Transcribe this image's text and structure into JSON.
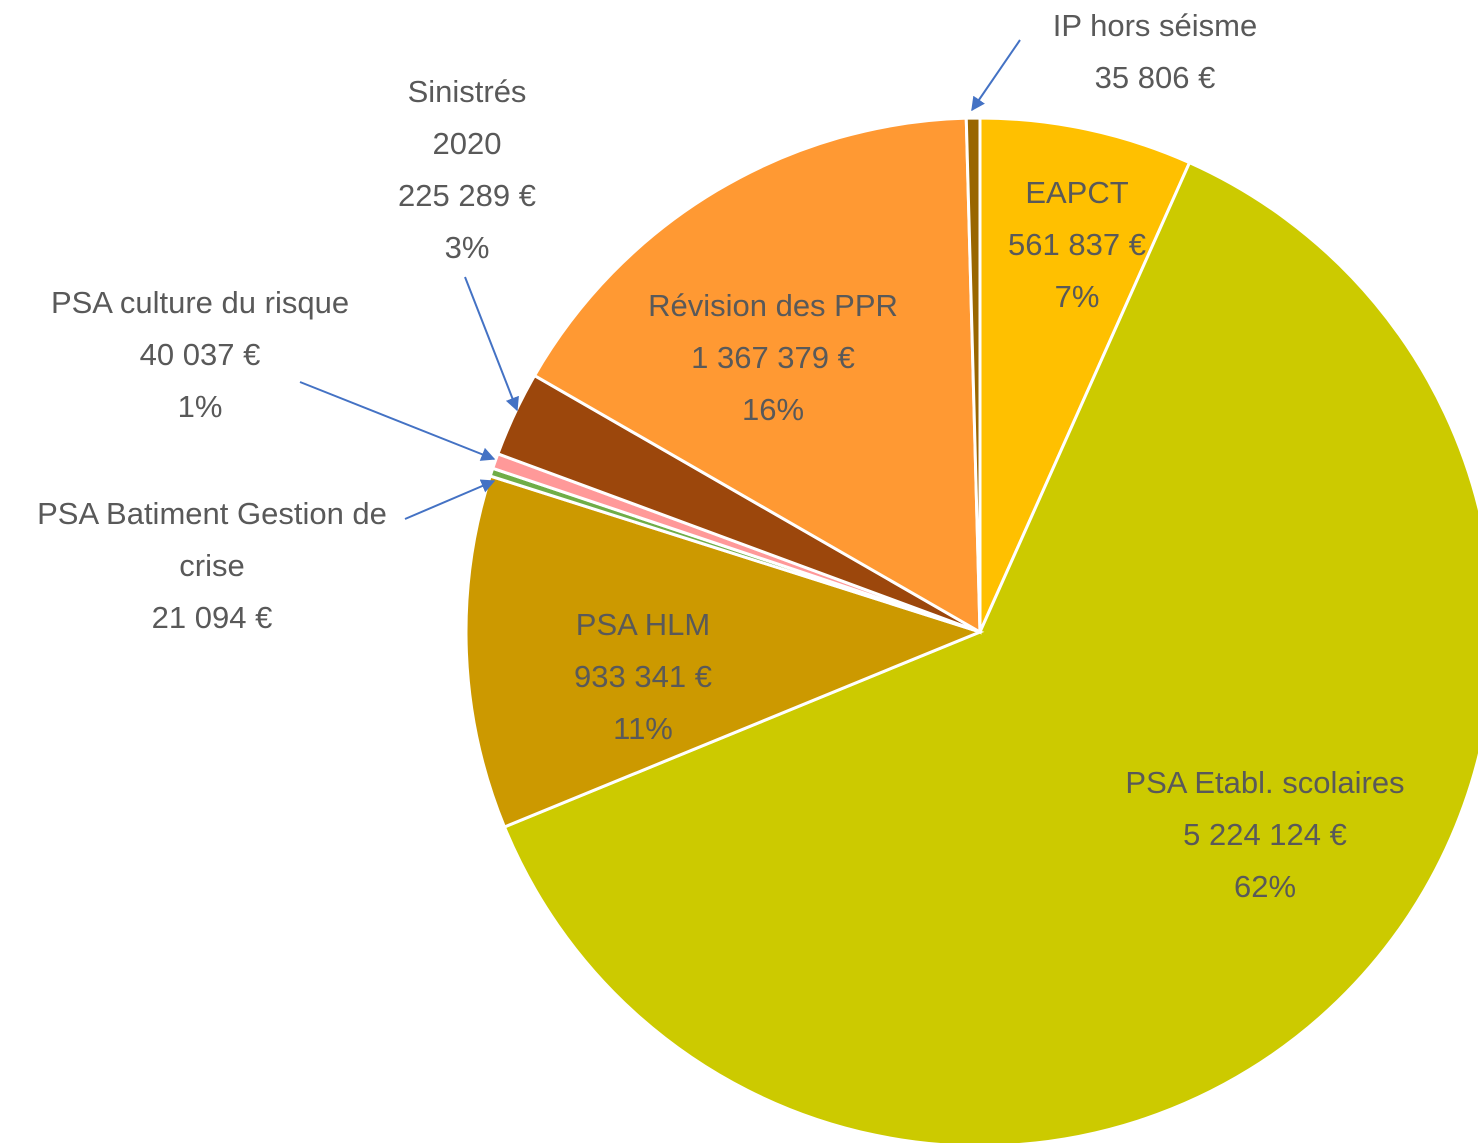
{
  "chart_data": {
    "type": "pie",
    "categories": [
      "EAPCT",
      "PSA Etabl. scolaires",
      "PSA HLM",
      "PSA Batiment Gestion de crise",
      "PSA culture du risque",
      "Sinistrés 2020",
      "Révision des PPR",
      "IP hors séisme"
    ],
    "values": [
      561837,
      5224124,
      933341,
      21094,
      40037,
      225289,
      1367379,
      35806
    ],
    "value_labels": [
      "561 837 €",
      "5 224 124 €",
      "933 341 €",
      "21 094 €",
      "40 037 €",
      "225 289 €",
      "1 367 379 €",
      "35 806 €"
    ],
    "percent_labels": [
      "7%",
      "62%",
      "11%",
      null,
      "1%",
      "3%",
      "16%",
      null
    ],
    "colors": [
      "#FFC000",
      "#CCCA00",
      "#CC9900",
      "#70AD47",
      "#FF9999",
      "#9C470C",
      "#FF9933",
      "#996600"
    ]
  }
}
